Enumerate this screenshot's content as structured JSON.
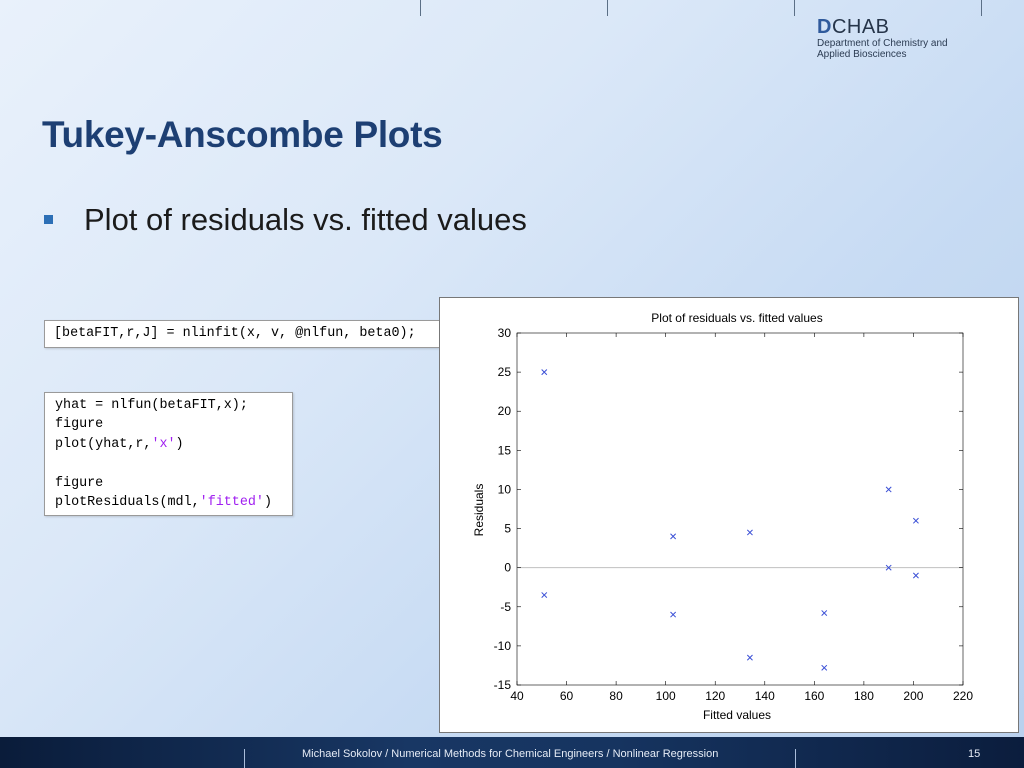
{
  "logo": {
    "mark_letter": "D",
    "mark_rest": "CHAB",
    "line1": "Department of Chemistry and",
    "line2": "Applied Biosciences"
  },
  "slide": {
    "title": "Tukey-Anscombe Plots",
    "bullet": "Plot of residuals vs. fitted values"
  },
  "code": {
    "box1": [
      {
        "text": "[betaFIT,r,J] = nlinfit(x, v, @nlfun, beta0);",
        "str": ""
      }
    ],
    "box2": [
      {
        "text": "yhat = nlfun(betaFIT,x);",
        "str": ""
      },
      {
        "text": "figure",
        "str": ""
      },
      {
        "text": "plot(yhat,r,",
        "str": "'x'",
        "tail": ")"
      },
      {
        "text": "",
        "str": ""
      },
      {
        "text": "figure",
        "str": ""
      },
      {
        "text": "plotResiduals(mdl,",
        "str": "'fitted'",
        "tail": ")"
      }
    ]
  },
  "footer": {
    "text": "Michael Sokolov / Numerical Methods for Chemical Engineers / Nonlinear Regression",
    "page": "15"
  },
  "chart_data": {
    "type": "scatter",
    "title": "Plot of residuals vs. fitted values",
    "xlabel": "Fitted values",
    "ylabel": "Residuals",
    "xlim": [
      40,
      220
    ],
    "ylim": [
      -15,
      30
    ],
    "xticks": [
      40,
      60,
      80,
      100,
      120,
      140,
      160,
      180,
      200,
      220
    ],
    "yticks": [
      -15,
      -10,
      -5,
      0,
      5,
      10,
      15,
      20,
      25,
      30
    ],
    "zero_line": true,
    "grid": false,
    "marker": "x",
    "marker_color": "#3a4fd6",
    "series": [
      {
        "x": [
          51,
          51,
          103,
          103,
          134,
          134,
          164,
          164,
          190,
          190,
          201,
          201
        ],
        "y": [
          25,
          -3.5,
          4,
          -6,
          4.5,
          -11.5,
          -5.8,
          -12.8,
          10,
          0,
          6,
          -1
        ]
      }
    ]
  }
}
